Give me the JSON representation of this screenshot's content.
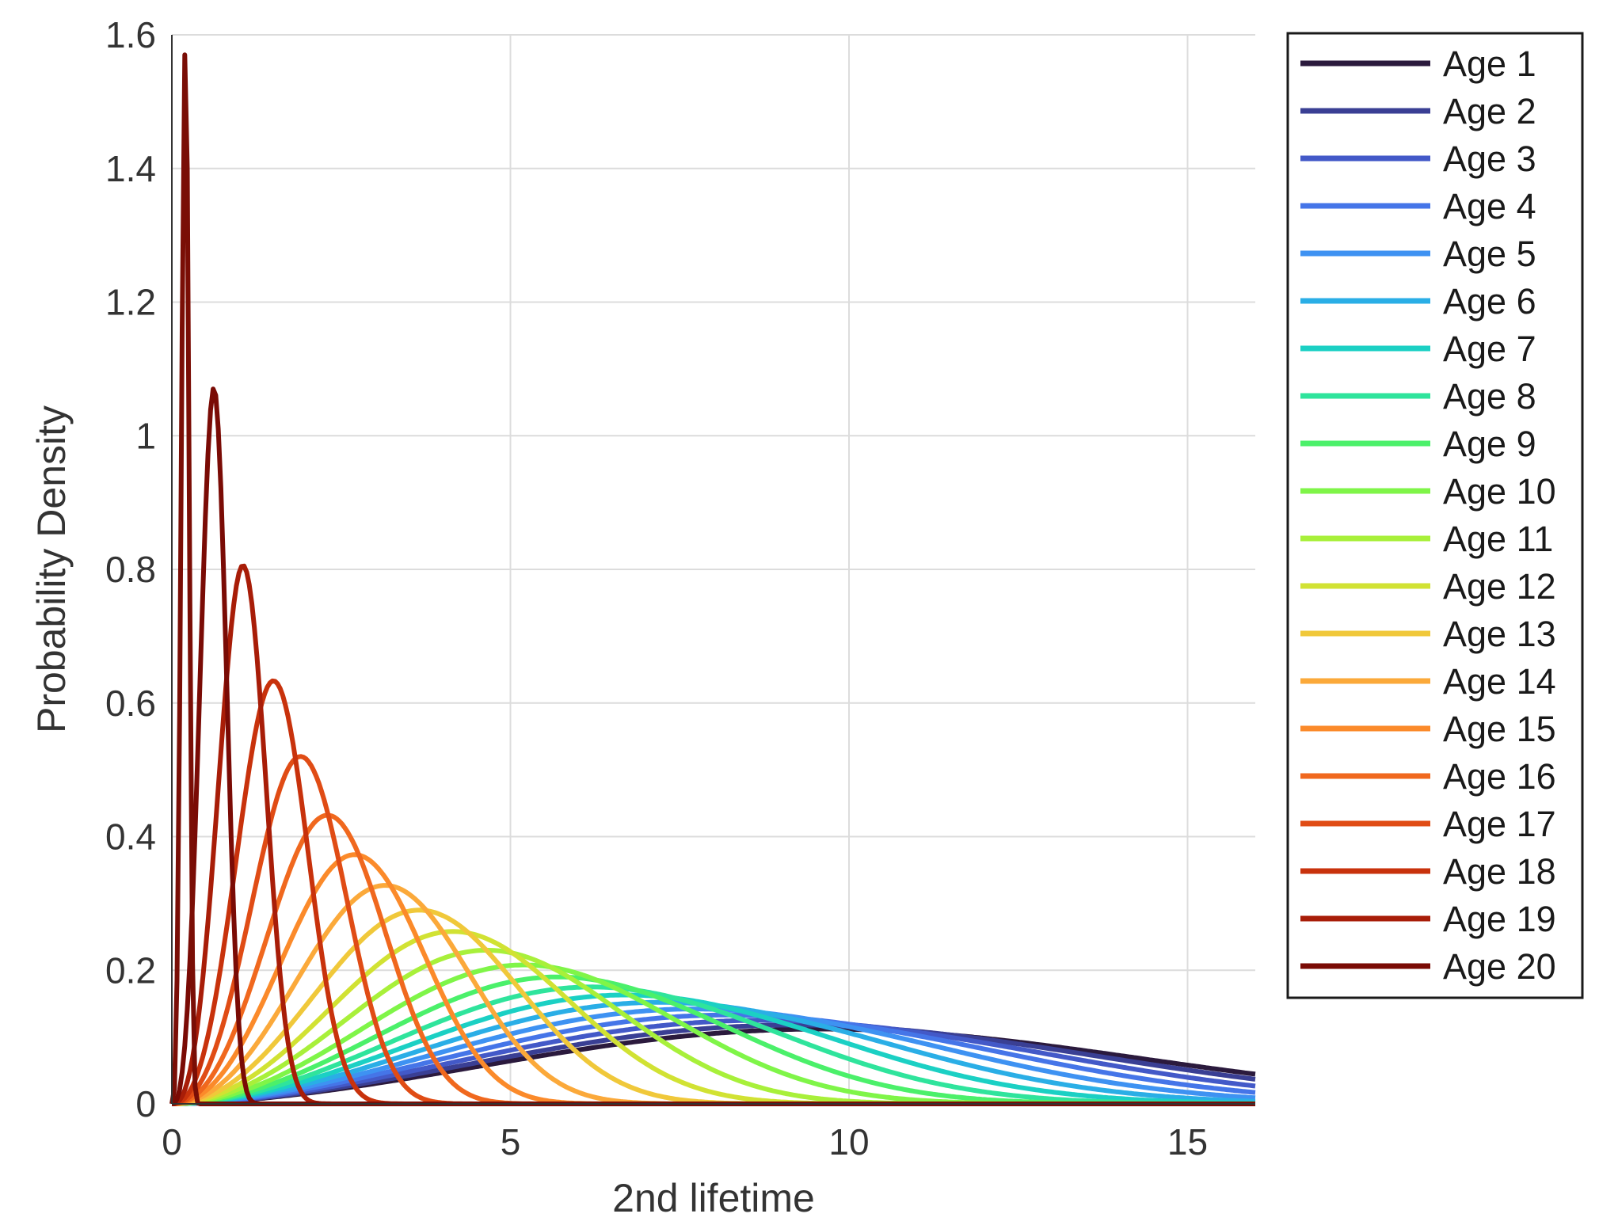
{
  "chart_data": {
    "type": "line",
    "title": "",
    "xlabel": "2nd lifetime",
    "ylabel": "Probability Density",
    "xlim": [
      0,
      16
    ],
    "ylim": [
      0,
      1.6
    ],
    "x_ticks": [
      "0",
      "5",
      "10",
      "15"
    ],
    "y_ticks": [
      "0",
      "0.2",
      "0.4",
      "0.6",
      "0.8",
      "1",
      "1.2",
      "1.4",
      "1.6"
    ],
    "grid": true,
    "legend_position": "outside-right",
    "series": [
      {
        "name": "Age 1",
        "color": "#2b1a3d",
        "peak_x": 9.6,
        "peak_y": 0.112
      },
      {
        "name": "Age 2",
        "color": "#3a3f94",
        "peak_x": 9.2,
        "peak_y": 0.118
      },
      {
        "name": "Age 3",
        "color": "#4359c8",
        "peak_x": 8.7,
        "peak_y": 0.125
      },
      {
        "name": "Age 4",
        "color": "#4575e8",
        "peak_x": 8.2,
        "peak_y": 0.133
      },
      {
        "name": "Age 5",
        "color": "#3e92f2",
        "peak_x": 7.7,
        "peak_y": 0.142
      },
      {
        "name": "Age 6",
        "color": "#2aaee6",
        "peak_x": 7.2,
        "peak_y": 0.152
      },
      {
        "name": "Age 7",
        "color": "#1bd0c4",
        "peak_x": 6.7,
        "peak_y": 0.163
      },
      {
        "name": "Age 8",
        "color": "#2fe49c",
        "peak_x": 6.2,
        "peak_y": 0.175
      },
      {
        "name": "Age 9",
        "color": "#4bf06a",
        "peak_x": 5.7,
        "peak_y": 0.19
      },
      {
        "name": "Age 10",
        "color": "#7ff548",
        "peak_x": 5.2,
        "peak_y": 0.208
      },
      {
        "name": "Age 11",
        "color": "#a8f03a",
        "peak_x": 4.65,
        "peak_y": 0.23
      },
      {
        "name": "Age 12",
        "color": "#d1e233",
        "peak_x": 4.15,
        "peak_y": 0.258
      },
      {
        "name": "Age 13",
        "color": "#f0c83a",
        "peak_x": 3.65,
        "peak_y": 0.29
      },
      {
        "name": "Age 14",
        "color": "#fba93a",
        "peak_x": 3.15,
        "peak_y": 0.327
      },
      {
        "name": "Age 15",
        "color": "#fb8a2a",
        "peak_x": 2.7,
        "peak_y": 0.373
      },
      {
        "name": "Age 16",
        "color": "#f0681e",
        "peak_x": 2.3,
        "peak_y": 0.432
      },
      {
        "name": "Age 17",
        "color": "#e04c15",
        "peak_x": 1.9,
        "peak_y": 0.52
      },
      {
        "name": "Age 18",
        "color": "#c8320c",
        "peak_x": 1.5,
        "peak_y": 0.633
      },
      {
        "name": "Age 19",
        "color": "#a81d08",
        "peak_x": 1.05,
        "peak_y": 0.805
      },
      {
        "name": "Age 20",
        "color": "#7a0b05",
        "peak_x": 0.62,
        "peak_y": 1.07
      },
      {
        "name": "",
        "color": "#7a0e06",
        "peak_x": 0.2,
        "peak_y": 1.57
      }
    ]
  }
}
